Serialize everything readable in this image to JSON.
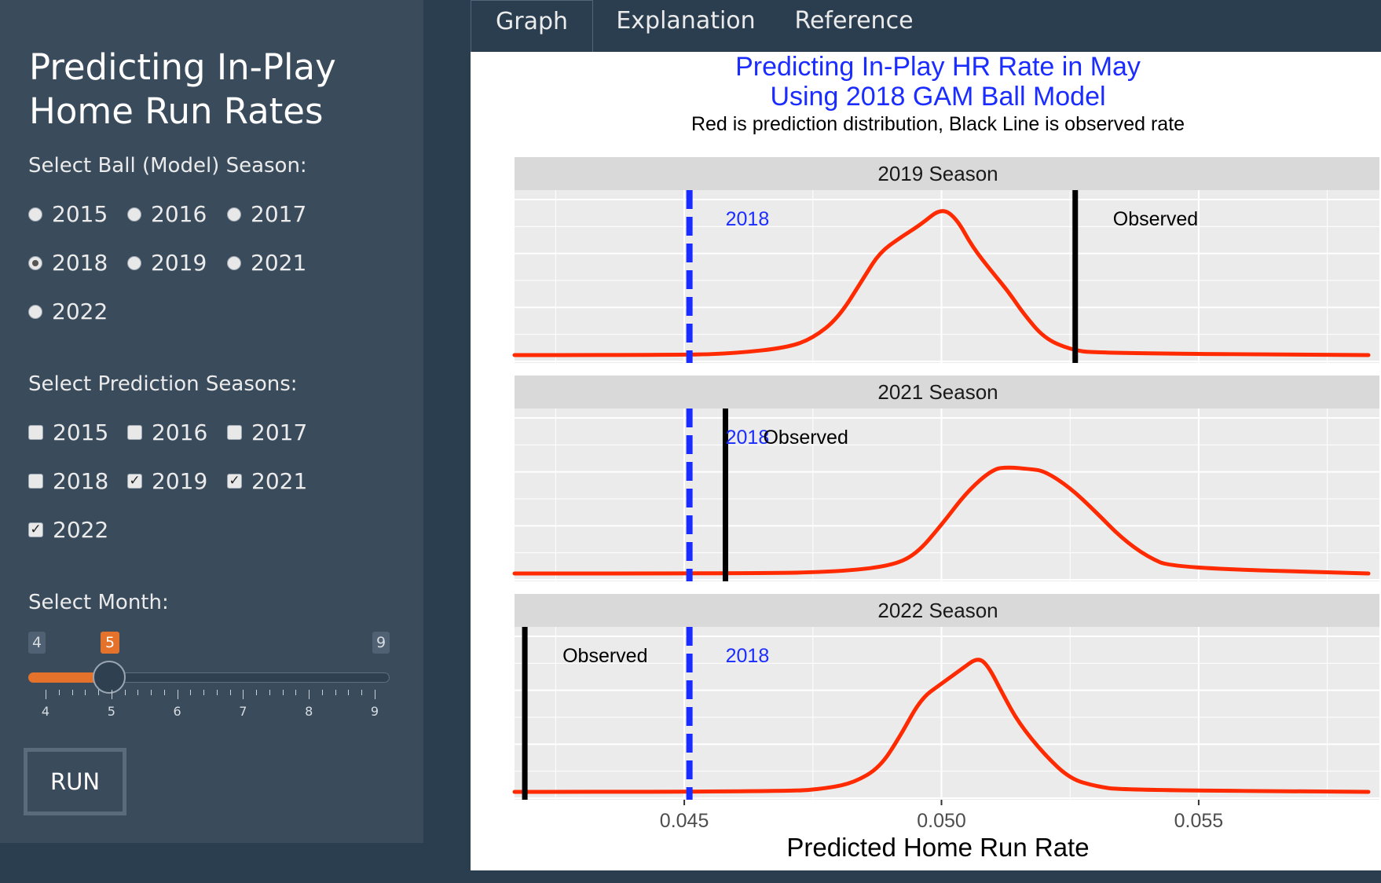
{
  "sidebar": {
    "title_line1": "Predicting In-Play",
    "title_line2": "Home Run Rates",
    "ball_label": "Select Ball (Model) Season:",
    "ball_options": [
      "2015",
      "2016",
      "2017",
      "2018",
      "2019",
      "2021",
      "2022"
    ],
    "ball_selected": "2018",
    "pred_label": "Select Prediction Seasons:",
    "pred_options": [
      "2015",
      "2016",
      "2017",
      "2018",
      "2019",
      "2021",
      "2022"
    ],
    "pred_checked": [
      "2019",
      "2021",
      "2022"
    ],
    "month_label": "Select Month:",
    "slider": {
      "min": "4",
      "max": "9",
      "value": "5",
      "ticks": [
        "4",
        "5",
        "6",
        "7",
        "8",
        "9"
      ]
    },
    "run_label": "RUN"
  },
  "tabs": [
    "Graph",
    "Explanation",
    "Reference"
  ],
  "active_tab": "Graph",
  "colors": {
    "accent": "#e4722a",
    "density": "#ff2a00",
    "model_line": "#1a2cff",
    "observed_line": "#000000",
    "title": "#1a2cff"
  },
  "chart_data": {
    "type": "line",
    "title_line1": "Predicting In-Play HR Rate in May",
    "title_line2": "Using 2018 GAM Ball Model",
    "subtitle": "Red is prediction distribution, Black Line is observed rate",
    "xlabel": "Predicted Home Run Rate",
    "xlim": [
      0.0417,
      0.0583
    ],
    "xticks": [
      "0.045",
      "0.050",
      "0.055"
    ],
    "xtick_values": [
      0.045,
      0.05,
      0.055
    ],
    "model_season_line": {
      "label": "2018",
      "x": 0.0451
    },
    "observed_label": "Observed",
    "panels": [
      {
        "title": "2019 Season",
        "observed": 0.0526,
        "density": {
          "x": [
            0.0417,
            0.045,
            0.046,
            0.047,
            0.0475,
            0.048,
            0.0485,
            0.0488,
            0.0492,
            0.0496,
            0.05,
            0.0503,
            0.0506,
            0.051,
            0.0513,
            0.0516,
            0.052,
            0.0525,
            0.053,
            0.0583
          ],
          "y": [
            0,
            0,
            0.01,
            0.04,
            0.09,
            0.2,
            0.42,
            0.55,
            0.63,
            0.7,
            0.79,
            0.73,
            0.58,
            0.44,
            0.34,
            0.22,
            0.09,
            0.03,
            0.01,
            0
          ]
        }
      },
      {
        "title": "2021 Season",
        "observed": 0.0458,
        "density": {
          "x": [
            0.0417,
            0.0465,
            0.048,
            0.049,
            0.0495,
            0.05,
            0.0505,
            0.051,
            0.0513,
            0.0517,
            0.052,
            0.0525,
            0.053,
            0.0535,
            0.054,
            0.0545,
            0.0583
          ],
          "y": [
            0,
            0,
            0.01,
            0.04,
            0.1,
            0.26,
            0.44,
            0.56,
            0.57,
            0.56,
            0.55,
            0.46,
            0.33,
            0.19,
            0.09,
            0.03,
            0
          ]
        }
      },
      {
        "title": "2022 Season",
        "observed": 0.0419,
        "density": {
          "x": [
            0.0417,
            0.047,
            0.0478,
            0.0483,
            0.0488,
            0.0492,
            0.0496,
            0.05,
            0.0504,
            0.0507,
            0.0509,
            0.0512,
            0.0515,
            0.052,
            0.0525,
            0.053,
            0.0535,
            0.0583
          ],
          "y": [
            0,
            0,
            0.02,
            0.05,
            0.13,
            0.3,
            0.5,
            0.58,
            0.66,
            0.72,
            0.68,
            0.52,
            0.37,
            0.2,
            0.07,
            0.03,
            0.01,
            0
          ]
        }
      }
    ]
  }
}
